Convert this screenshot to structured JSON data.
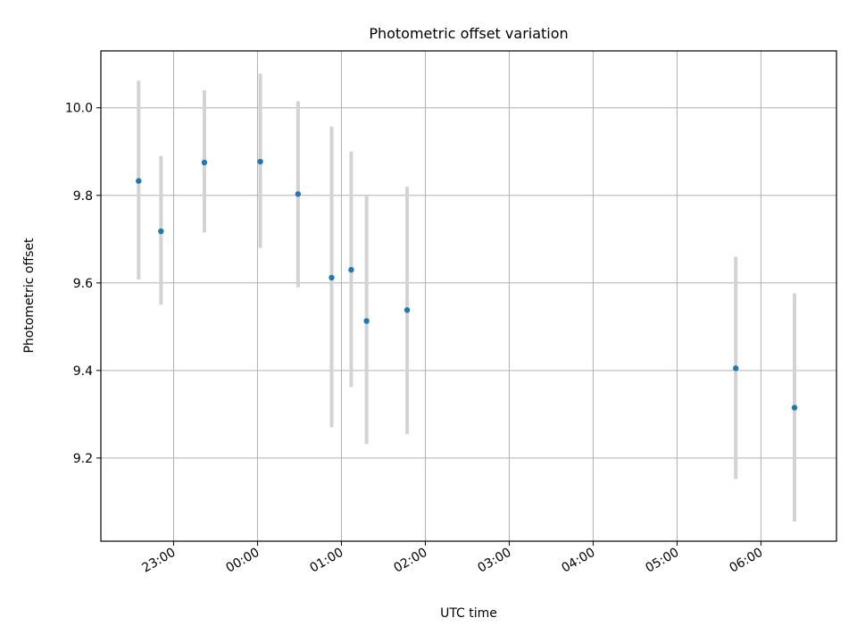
{
  "chart_data": {
    "type": "scatter",
    "title": "Photometric offset variation",
    "xlabel": "UTC time",
    "ylabel": "Photometric offset",
    "x_type": "time",
    "xlim": [
      "22:08",
      "06:54"
    ],
    "ylim": [
      9.01,
      10.13
    ],
    "x_ticks": [
      "23:00",
      "00:00",
      "01:00",
      "02:00",
      "03:00",
      "04:00",
      "05:00",
      "06:00"
    ],
    "y_ticks": [
      "9.2",
      "9.4",
      "9.6",
      "9.8",
      "10.0"
    ],
    "grid": true,
    "colors": {
      "points": "#1f77b4",
      "errorbars": "#d3d3d3"
    },
    "points": [
      {
        "x": "22:35",
        "y": 9.833,
        "ylow": 9.608,
        "yhigh": 10.062
      },
      {
        "x": "22:51",
        "y": 9.718,
        "ylow": 9.55,
        "yhigh": 9.89
      },
      {
        "x": "23:22",
        "y": 9.875,
        "ylow": 9.715,
        "yhigh": 10.04
      },
      {
        "x": "00:02",
        "y": 9.877,
        "ylow": 9.68,
        "yhigh": 10.078
      },
      {
        "x": "00:29",
        "y": 9.803,
        "ylow": 9.59,
        "yhigh": 10.015
      },
      {
        "x": "00:53",
        "y": 9.612,
        "ylow": 9.27,
        "yhigh": 9.957
      },
      {
        "x": "01:07",
        "y": 9.63,
        "ylow": 9.362,
        "yhigh": 9.9
      },
      {
        "x": "01:18",
        "y": 9.513,
        "ylow": 9.232,
        "yhigh": 9.8
      },
      {
        "x": "01:47",
        "y": 9.538,
        "ylow": 9.255,
        "yhigh": 9.82
      },
      {
        "x": "05:42",
        "y": 9.405,
        "ylow": 9.152,
        "yhigh": 9.66
      },
      {
        "x": "06:24",
        "y": 9.315,
        "ylow": 9.055,
        "yhigh": 9.576
      }
    ]
  }
}
